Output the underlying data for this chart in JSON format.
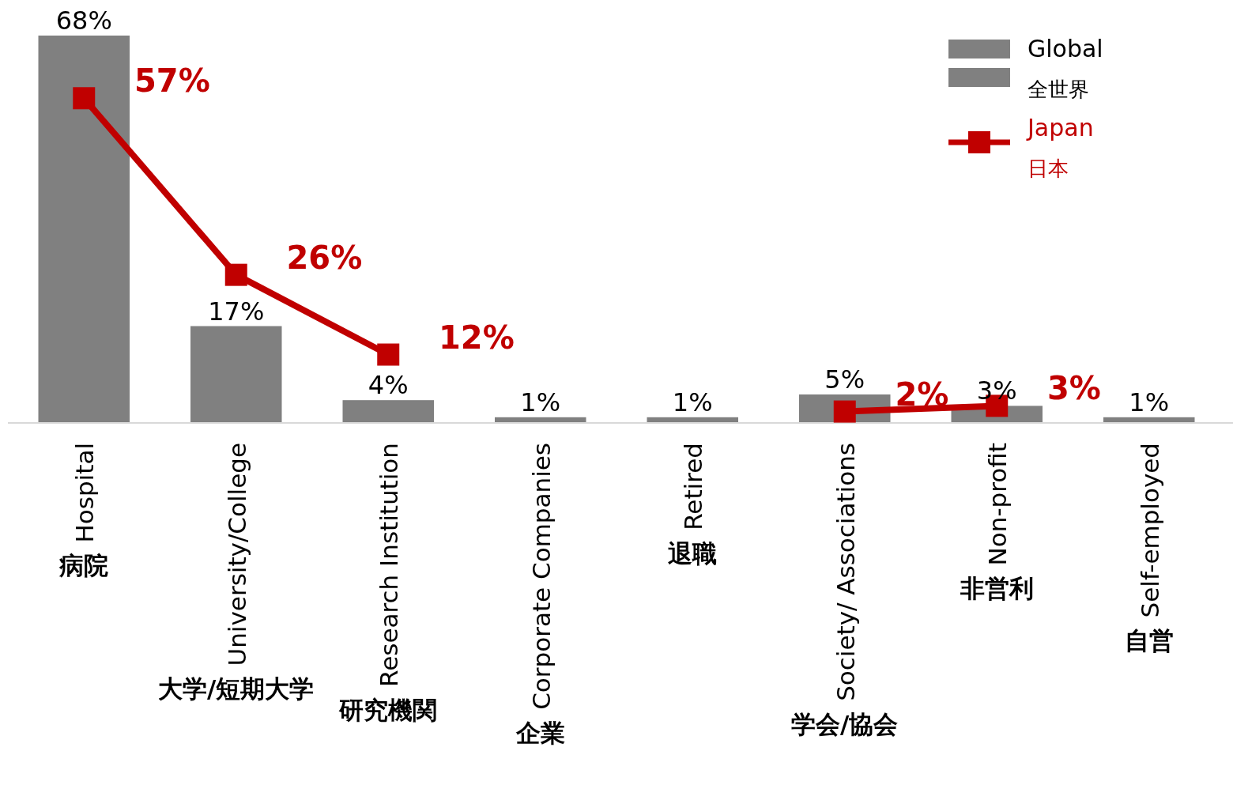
{
  "chart_data": {
    "type": "bar",
    "categories": [
      "Hospital\n病院",
      "University/College\n大学/短期大学",
      "Research Institution\n研究機関",
      "Corporate Companies\n企業",
      "Retired\n退職",
      "Society/ Associations\n学会/協会",
      "Non-profit\n非営利",
      "Self-employed\n自営"
    ],
    "series": [
      {
        "name": "Global\n全世界",
        "color": "#808080",
        "values": [
          68,
          17,
          4,
          1,
          1,
          5,
          3,
          1
        ],
        "value_labels": [
          "68%",
          "17%",
          "4%",
          "1%",
          "1%",
          "5%",
          "3%",
          "1%"
        ]
      },
      {
        "name": "Japan\n日本",
        "type": "line",
        "color": "#c00000",
        "values": [
          57,
          26,
          12,
          null,
          null,
          2,
          3,
          null
        ],
        "value_labels": [
          "57%",
          "26%",
          "12%",
          null,
          null,
          "2%",
          "3%",
          null
        ]
      }
    ],
    "legend": "top right",
    "marker": "square"
  }
}
